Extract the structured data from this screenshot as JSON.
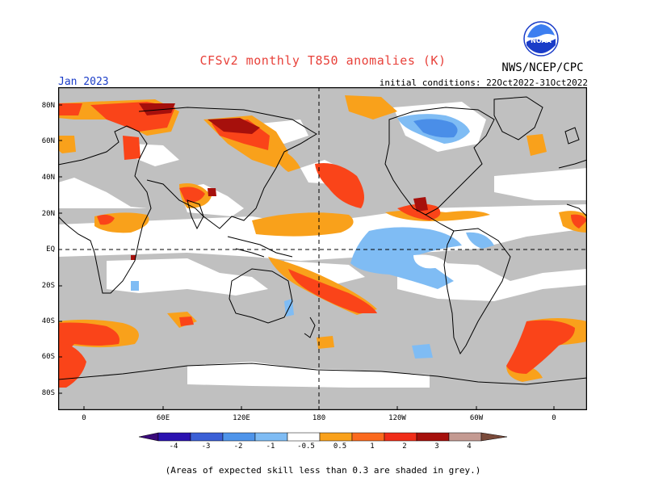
{
  "header": {
    "title": "CFSv2 monthly T850 anomalies (K)",
    "org": "NWS/NCEP/CPC",
    "month": "Jan 2023",
    "init": "initial conditions: 22Oct2022-31Oct2022",
    "logo_text": "NOAA"
  },
  "map": {
    "lat_labels": [
      "80N",
      "60N",
      "40N",
      "20N",
      "EQ",
      "20S",
      "40S",
      "60S",
      "80S"
    ],
    "lon_labels": [
      "0",
      "60E",
      "120E",
      "180",
      "120W",
      "60W",
      "0"
    ]
  },
  "colorbar": {
    "ticks": [
      "-4",
      "-3",
      "-2",
      "-1",
      "-0.5",
      "0.5",
      "1",
      "2",
      "3",
      "4"
    ],
    "colors": [
      "#2b12b0",
      "#3a5fd6",
      "#4e94ea",
      "#7fbcf4",
      "#ffffff",
      "#f9a11b",
      "#fb6a1e",
      "#f02d19",
      "#a6100c",
      "#c49a92"
    ]
  },
  "footnote": "(Areas of expected skill less than 0.3 are shaded in grey.)",
  "palette": {
    "grey": "#c0c0c0",
    "orange": "#f9a11b",
    "red": "#fa4419",
    "darkred": "#a6100c",
    "lightblue": "#7fbcf4",
    "blue": "#4a8ee8"
  }
}
